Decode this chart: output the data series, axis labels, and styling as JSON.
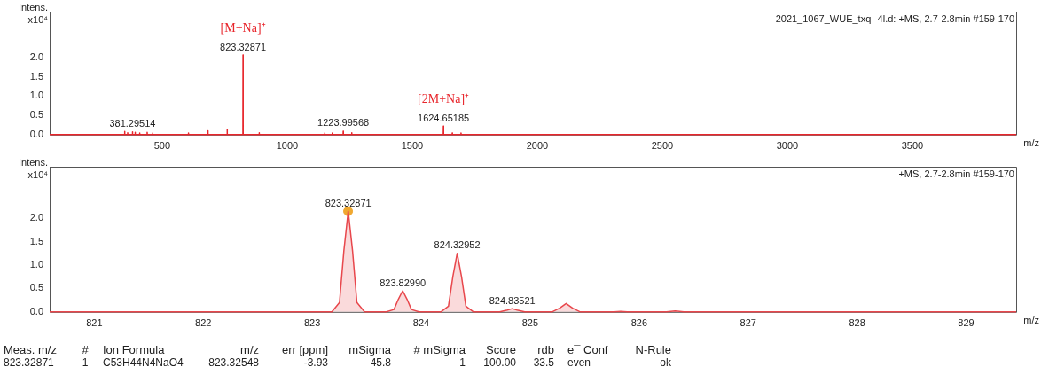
{
  "chart_data": [
    {
      "type": "line",
      "subtitle": "2021_1067_WUE_txq--4l.d: +MS, 2.7-2.8min #159-170",
      "xlabel": "m/z",
      "ylabel": "Intens. x10⁴",
      "xlim": [
        50,
        3915
      ],
      "xticks": [
        500,
        1000,
        1500,
        2000,
        2500,
        3000,
        3500
      ],
      "ylim": [
        0,
        3.2
      ],
      "yticks": [
        {
          "value": 0,
          "label": "0.0"
        },
        {
          "value": 0.5,
          "label": "0.5"
        },
        {
          "value": 1,
          "label": "1.0"
        },
        {
          "value": 1.5,
          "label": "1.5"
        },
        {
          "value": 2,
          "label": "2.0"
        }
      ],
      "grid": false,
      "legend": false,
      "series": [
        {
          "color": "#e8262c",
          "x": [
            50,
            349.5,
            350,
            350.5,
            361.5,
            362,
            362.5,
            380.8,
            381.3,
            381.8,
            391.5,
            392,
            392.5,
            409.5,
            410,
            410.5,
            439.5,
            440,
            440.5,
            461.5,
            462,
            462.5,
            604.5,
            605,
            605.5,
            682.5,
            683,
            683.5,
            759.5,
            760,
            760.5,
            822.8,
            823.33,
            823.8,
            887.5,
            888,
            888.5,
            1149.5,
            1150,
            1150.5,
            1179.5,
            1180,
            1180.5,
            1223.5,
            1224,
            1224.5,
            1257.5,
            1258,
            1258.5,
            1624.1,
            1624.65,
            1625.2,
            1659.5,
            1660,
            1660.5,
            1694.5,
            1695,
            1695.5,
            3915
          ],
          "values": [
            0,
            0,
            0.08,
            0,
            0,
            0.05,
            0,
            0,
            0.07,
            0,
            0,
            0.06,
            0,
            0,
            0.04,
            0,
            0,
            0.06,
            0,
            0,
            0.04,
            0,
            0,
            0.04,
            0,
            0,
            0.1,
            0,
            0,
            0.14,
            0,
            0,
            2.07,
            0,
            0,
            0.05,
            0,
            0,
            0.04,
            0,
            0,
            0.04,
            0,
            0,
            0.09,
            0,
            0,
            0.05,
            0,
            0,
            0.22,
            0,
            0,
            0.04,
            0,
            0,
            0.04,
            0,
            0
          ]
        }
      ],
      "annotations": [
        {
          "text": "381.29514",
          "x": 381.3,
          "y": 0.07
        },
        {
          "text": "823.32871",
          "x": 823.33,
          "y": 2.07
        },
        {
          "text": "[M+Na]⁺",
          "x": 823.33,
          "y": 2.07
        },
        {
          "text": "1223.99568",
          "x": 1224,
          "y": 0.09
        },
        {
          "text": "1624.65185",
          "x": 1624.65,
          "y": 0.22
        },
        {
          "text": "[2M+Na]⁺",
          "x": 1624.65,
          "y": 0.22
        }
      ]
    },
    {
      "type": "area",
      "subtitle": "+MS, 2.7-2.8min #159-170",
      "xlabel": "m/z",
      "ylabel": "Intens. x10⁴",
      "xlim": [
        820.59,
        829.46
      ],
      "xticks": [
        821,
        822,
        823,
        824,
        825,
        826,
        827,
        828,
        829
      ],
      "ylim": [
        0,
        3.1
      ],
      "yticks": [
        {
          "value": 0,
          "label": "0.0"
        },
        {
          "value": 0.5,
          "label": "0.5"
        },
        {
          "value": 1,
          "label": "1.0"
        },
        {
          "value": 1.5,
          "label": "1.5"
        },
        {
          "value": 2,
          "label": "2.0"
        }
      ],
      "grid": false,
      "legend": false,
      "series": [
        {
          "color": "#e8474c",
          "x": [
            820.59,
            823.18,
            823.25,
            823.29,
            823.33,
            823.37,
            823.41,
            823.48,
            823.68,
            823.75,
            823.79,
            823.83,
            823.87,
            823.91,
            823.98,
            824.18,
            824.25,
            824.29,
            824.33,
            824.37,
            824.41,
            824.48,
            824.72,
            824.79,
            824.835,
            824.88,
            824.95,
            825.2,
            825.27,
            825.33,
            825.39,
            825.46,
            825.77,
            825.83,
            825.89,
            826.25,
            826.33,
            826.41,
            829.46
          ],
          "values": [
            0,
            0,
            0.2,
            1.3,
            2.15,
            1.3,
            0.2,
            0,
            0,
            0.05,
            0.27,
            0.45,
            0.27,
            0.05,
            0,
            0,
            0.12,
            0.75,
            1.25,
            0.75,
            0.12,
            0,
            0,
            0.04,
            0.07,
            0.04,
            0,
            0,
            0.08,
            0.18,
            0.08,
            0,
            0,
            0.01,
            0,
            0,
            0.02,
            0,
            0
          ]
        },
        {
          "type": "scatter",
          "marker": "circle",
          "color": "#f0a830",
          "x": [
            823.32871
          ],
          "values": [
            2.15
          ]
        }
      ],
      "annotations": [
        {
          "text": "823.32871",
          "x": 823.33,
          "y": 2.15
        },
        {
          "text": "823.82990",
          "x": 823.83,
          "y": 0.45
        },
        {
          "text": "824.32952",
          "x": 824.33,
          "y": 1.25
        },
        {
          "text": "824.83521",
          "x": 824.835,
          "y": 0.07
        }
      ]
    },
    {
      "type": "other",
      "annotations": [
        "Meas. m/z",
        "#",
        "Ion Formula",
        "m/z",
        "err [ppm]",
        "mSigma",
        "# mSigma",
        "Score",
        "rdb",
        "e¯ Conf",
        "N-Rule",
        "823.32871",
        "1",
        "C53H44N4NaO4",
        "823.32548",
        "-3.93",
        "45.8",
        "1",
        "100.00",
        "33.5",
        "even",
        "ok"
      ]
    }
  ]
}
